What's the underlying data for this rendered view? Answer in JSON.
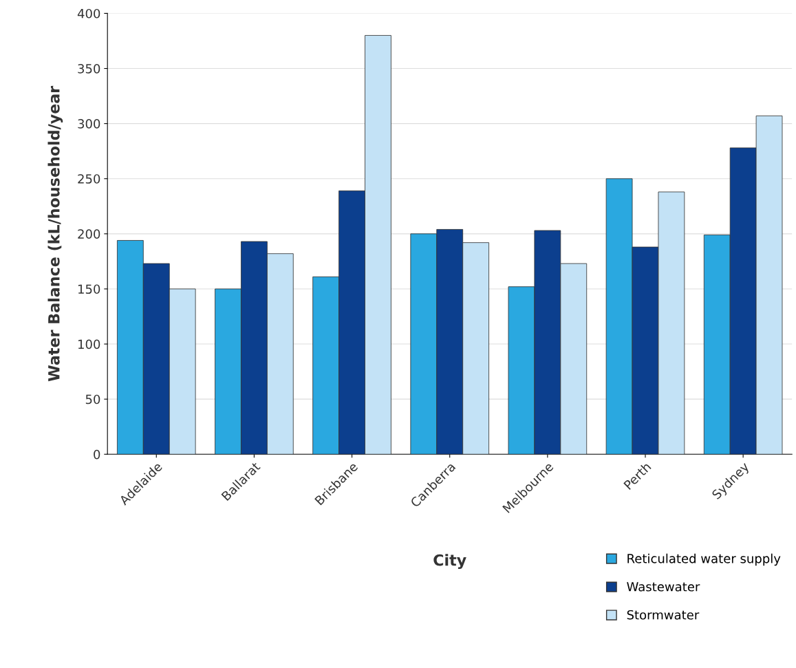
{
  "chart_data": {
    "type": "bar",
    "xlabel": "City",
    "ylabel": "Water Balance (kL/household/year",
    "categories": [
      "Adelaide",
      "Ballarat",
      "Brisbane",
      "Canberra",
      "Melbourne",
      "Perth",
      "Sydney"
    ],
    "series": [
      {
        "name": "Reticulated water supply",
        "color": "#2aa8e0",
        "values": [
          194,
          150,
          161,
          200,
          152,
          250,
          199
        ]
      },
      {
        "name": "Wastewater",
        "color": "#0c3f8e",
        "values": [
          173,
          193,
          239,
          204,
          203,
          188,
          278
        ]
      },
      {
        "name": "Stormwater",
        "color": "#c3e2f6",
        "values": [
          150,
          182,
          380,
          192,
          173,
          238,
          307
        ]
      }
    ],
    "ylim": [
      0,
      400
    ],
    "yticks": [
      0,
      50,
      100,
      150,
      200,
      250,
      300,
      350,
      400
    ],
    "grid": "y",
    "legend": "bottom right"
  }
}
